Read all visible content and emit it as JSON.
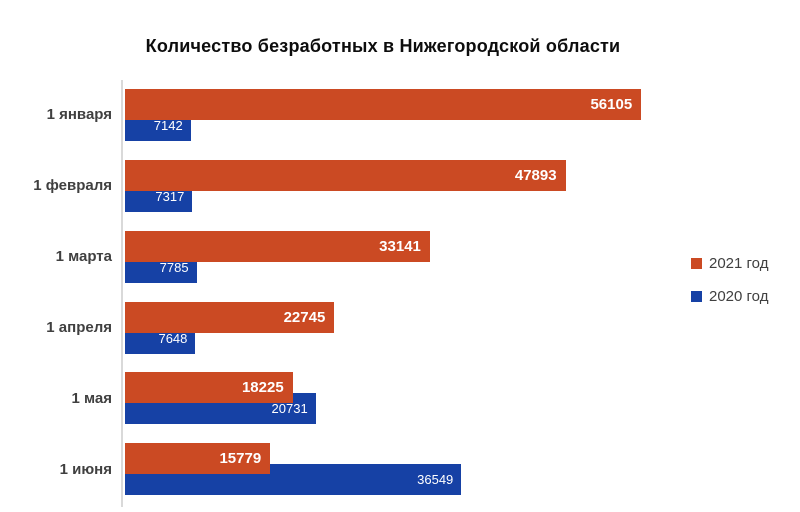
{
  "chart_data": {
    "type": "bar",
    "orientation": "horizontal",
    "title": "Количество безработных в Нижегородской области",
    "categories": [
      "1 января",
      "1 февраля",
      "1 марта",
      "1 апреля",
      "1 мая",
      "1 июня"
    ],
    "series": [
      {
        "name": "2021 год",
        "color": "#CB4A23",
        "values": [
          56105,
          47893,
          33141,
          22745,
          18225,
          15779
        ]
      },
      {
        "name": "2020 год",
        "color": "#1641A5",
        "values": [
          7142,
          7317,
          7785,
          7648,
          20731,
          36549
        ]
      }
    ],
    "xlim": [
      0,
      60000
    ],
    "grid": false,
    "legend_position": "right",
    "data_labels": "inside-end",
    "data_label_color": "#ffffff",
    "axis_line_color": "#D9D9D9",
    "category_label_color": "#404040",
    "title_color": "#0D0D0D",
    "background": "#FFFFFF"
  }
}
